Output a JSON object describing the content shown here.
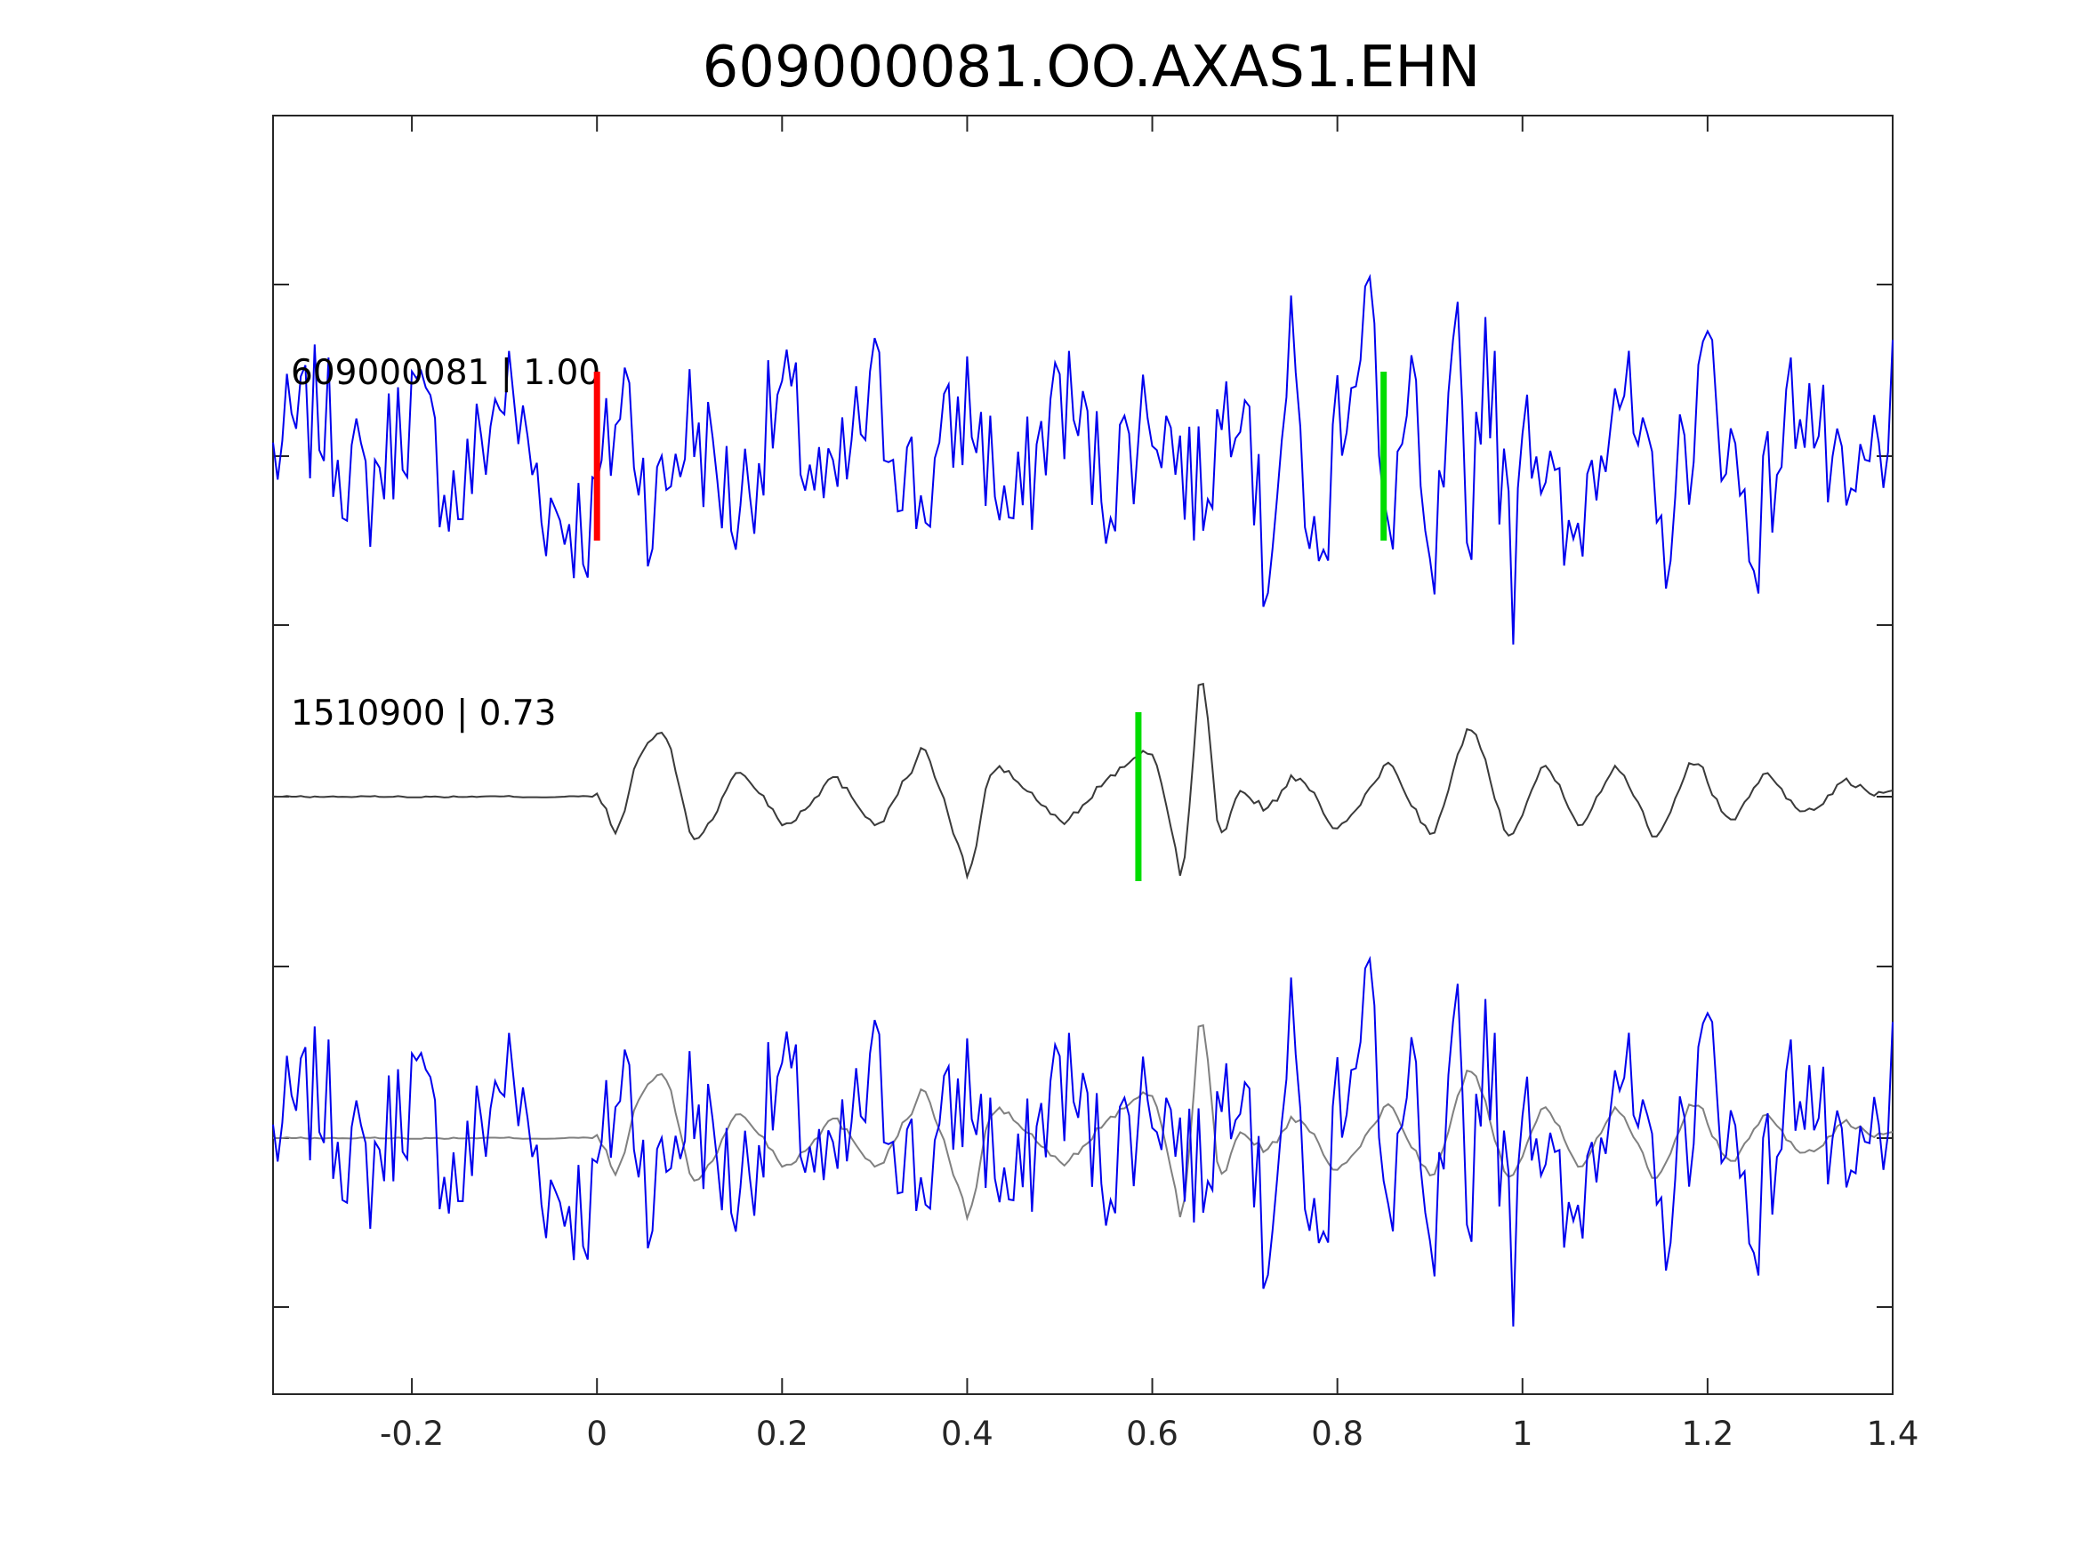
{
  "chart_data": {
    "type": "line",
    "title": "609000081.OO.AXAS1.EHN",
    "xlabel": "",
    "ylabel": "",
    "xlim": [
      -0.35,
      1.4
    ],
    "xticks": [
      -0.2,
      0,
      0.2,
      0.4,
      0.6,
      0.8,
      1,
      1.2,
      1.4
    ],
    "xtick_labels": [
      "-0.2",
      "0",
      "0.2",
      "0.4",
      "0.6",
      "0.8",
      "1",
      "1.2",
      "1.4"
    ],
    "grid": false,
    "colors": {
      "blue": "#0000ee",
      "dark": "#3a3a3a",
      "gray": "#808080",
      "red": "#ff0000",
      "green": "#00dd00",
      "axis": "#262626"
    },
    "traces": [
      {
        "label": "609000081 | 1.00",
        "color": "#0000ee",
        "x": [
          -0.35,
          -0.3,
          -0.25,
          -0.2,
          -0.15,
          -0.1,
          -0.05,
          -0.005,
          0.0,
          0.03,
          0.06,
          0.1,
          0.15,
          0.2,
          0.25,
          0.3,
          0.35,
          0.4,
          0.45,
          0.5,
          0.55,
          0.6,
          0.65,
          0.7,
          0.72,
          0.75,
          0.78,
          0.8,
          0.82,
          0.835,
          0.85,
          0.88,
          0.9,
          0.93,
          0.94,
          0.96,
          0.99,
          1.0,
          1.05,
          1.1,
          1.15,
          1.2,
          1.25,
          1.3,
          1.35,
          1.4
        ],
        "y": [
          0.0,
          0.3,
          -0.25,
          0.35,
          -0.3,
          0.45,
          -0.35,
          -0.45,
          -0.25,
          0.45,
          -0.4,
          0.25,
          -0.35,
          0.4,
          -0.35,
          0.4,
          -0.3,
          0.35,
          -0.45,
          0.45,
          -0.2,
          0.35,
          -0.25,
          0.7,
          -0.8,
          0.6,
          -0.9,
          0.3,
          0.7,
          1.1,
          -0.6,
          0.4,
          -1.0,
          0.6,
          -0.6,
          0.8,
          -0.8,
          0.5,
          -0.7,
          0.6,
          -0.6,
          0.6,
          -0.55,
          0.5,
          -0.45,
          0.3
        ]
      },
      {
        "label": "1510900 | 0.73",
        "color": "#3a3a3a",
        "x": [
          -0.35,
          -0.25,
          -0.15,
          -0.05,
          0.0,
          0.02,
          0.04,
          0.07,
          0.1,
          0.15,
          0.2,
          0.25,
          0.3,
          0.35,
          0.4,
          0.42,
          0.45,
          0.5,
          0.55,
          0.6,
          0.63,
          0.65,
          0.67,
          0.69,
          0.72,
          0.75,
          0.8,
          0.85,
          0.9,
          0.94,
          0.98,
          1.02,
          1.06,
          1.1,
          1.14,
          1.18,
          1.22,
          1.26,
          1.3,
          1.34,
          1.4
        ],
        "y": [
          0.0,
          0.0,
          0.0,
          0.0,
          0.0,
          -0.3,
          0.3,
          0.45,
          -0.35,
          0.2,
          -0.2,
          0.15,
          -0.2,
          0.35,
          -0.6,
          0.25,
          0.1,
          -0.2,
          0.15,
          0.3,
          -0.65,
          1.1,
          -0.5,
          0.1,
          -0.1,
          0.15,
          -0.25,
          0.25,
          -0.3,
          0.55,
          -0.3,
          0.25,
          -0.2,
          0.25,
          -0.3,
          0.3,
          -0.2,
          0.2,
          -0.15,
          0.1,
          0.0
        ]
      },
      {
        "label": "",
        "overlay_of": [
          "609000081 | 1.00",
          "1510900 | 0.73"
        ],
        "colors": [
          "#0000ee",
          "#808080"
        ]
      }
    ],
    "picks": [
      {
        "trace": 0,
        "x": 0.0,
        "color": "#ff0000"
      },
      {
        "trace": 0,
        "x": 0.85,
        "color": "#00dd00"
      },
      {
        "trace": 1,
        "x": 0.585,
        "color": "#00dd00"
      }
    ]
  }
}
